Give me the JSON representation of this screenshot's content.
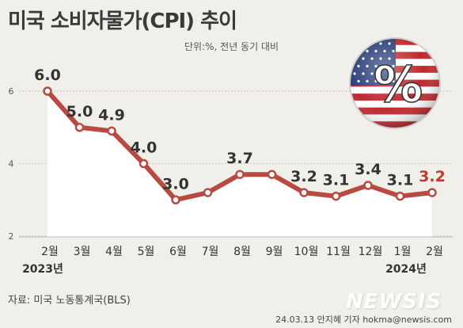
{
  "header": {
    "title": "미국 소비자물가(CPI) 추이",
    "unit": "단위:%, 전년 동기 대비"
  },
  "footer": {
    "source": "자료: 미국 노동통계국(BLS)",
    "credit": "24.03.13 안지혜 기자 hokma@newsis.com",
    "watermark": "NEWSIS"
  },
  "badge": {
    "symbol": "%",
    "icon": "us-flag-icon"
  },
  "colors": {
    "line": "#b84a42",
    "area": "#ffffff",
    "background": "#f1efe9",
    "last_label": "#c0392b",
    "label": "#333333"
  },
  "chart_data": {
    "type": "line",
    "title": "",
    "x": [
      "2월",
      "3월",
      "4월",
      "5월",
      "6월",
      "7월",
      "8월",
      "9월",
      "10월",
      "11월",
      "12월",
      "1월",
      "2월"
    ],
    "year_labels": [
      "2023년",
      "2024년"
    ],
    "values": [
      6.0,
      5.0,
      4.9,
      4.0,
      3.0,
      3.2,
      3.7,
      3.7,
      3.2,
      3.1,
      3.4,
      3.1,
      3.2
    ],
    "data_labels": [
      "6.0",
      "5.0",
      "4.9",
      "4.0",
      "3.0",
      "",
      "3.7",
      "",
      "3.2",
      "3.1",
      "3.4",
      "3.1",
      "3.2"
    ],
    "y_ticks": [
      2,
      4,
      6
    ],
    "ylim": [
      2,
      6.5
    ],
    "grid": true
  }
}
